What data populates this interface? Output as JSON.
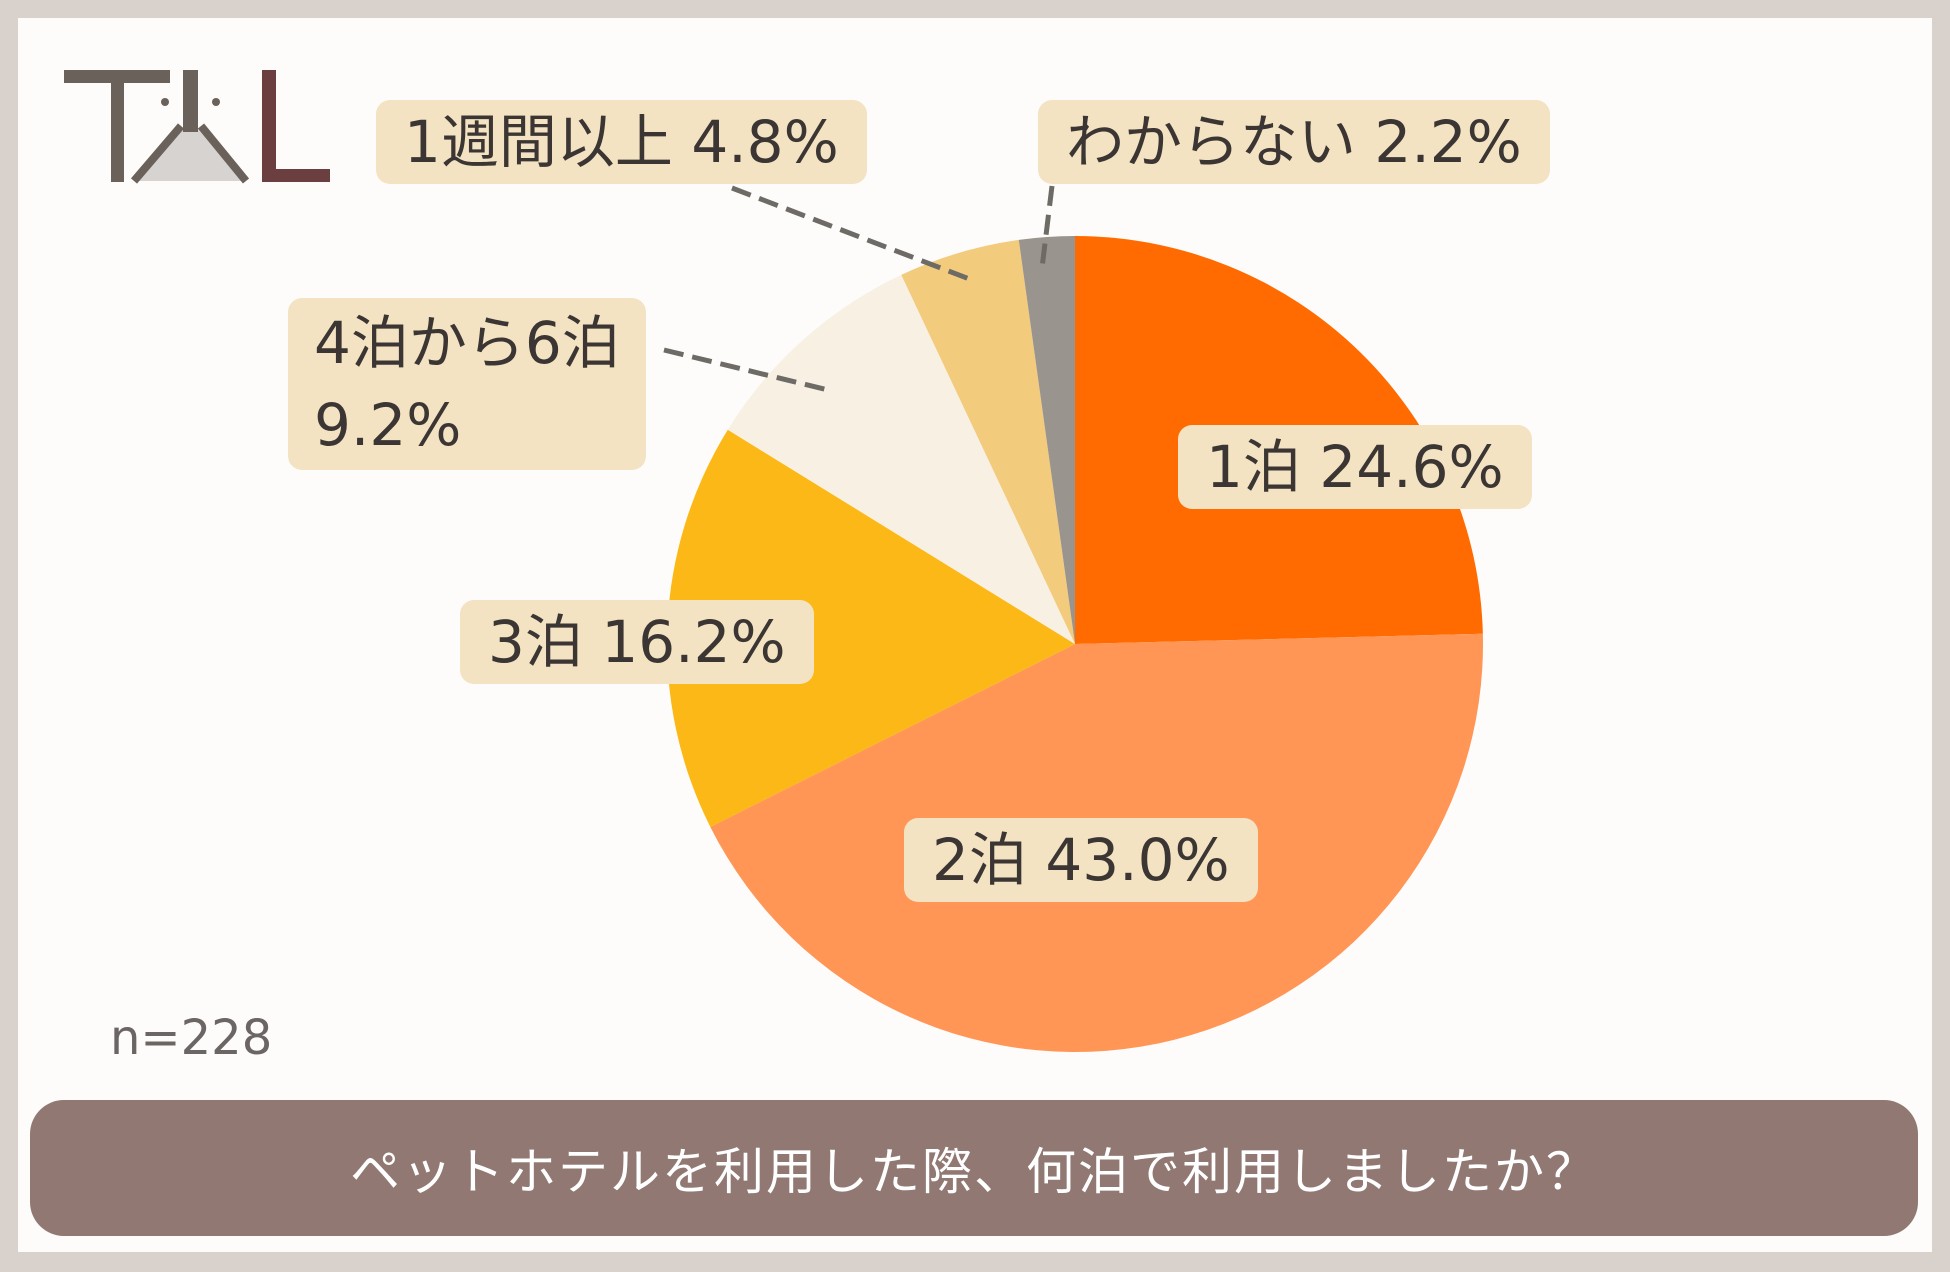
{
  "question": "ペットホテルを利用した際、何泊で利用しましたか？",
  "sample_size": "n=228",
  "logo": {
    "text": "TAL"
  },
  "colors": {
    "footer_bar": "#917872",
    "label_bg": "#f3e3c2",
    "background": "#fdfcfb",
    "frame": "#d8d1cc"
  },
  "chart_data": {
    "type": "pie",
    "start_angle_deg": 0,
    "direction": "clockwise",
    "slices": [
      {
        "label": "1泊",
        "value": 24.6,
        "display": "1泊 24.6%",
        "color": "#ff6b00"
      },
      {
        "label": "2泊",
        "value": 43.0,
        "display": "2泊 43.0%",
        "color": "#ff9656"
      },
      {
        "label": "3泊",
        "value": 16.2,
        "display": "3泊 16.2%",
        "color": "#fbb816"
      },
      {
        "label": "4泊から6泊",
        "value": 9.2,
        "display_line1": "4泊から6泊",
        "display_line2": "9.2%",
        "color": "#f8f1e3"
      },
      {
        "label": "1週間以上",
        "value": 4.8,
        "display": "1週間以上 4.8%",
        "color": "#f3cb7c"
      },
      {
        "label": "わからない",
        "value": 2.2,
        "display": "わからない 2.2%",
        "color": "#9a948e"
      }
    ]
  }
}
